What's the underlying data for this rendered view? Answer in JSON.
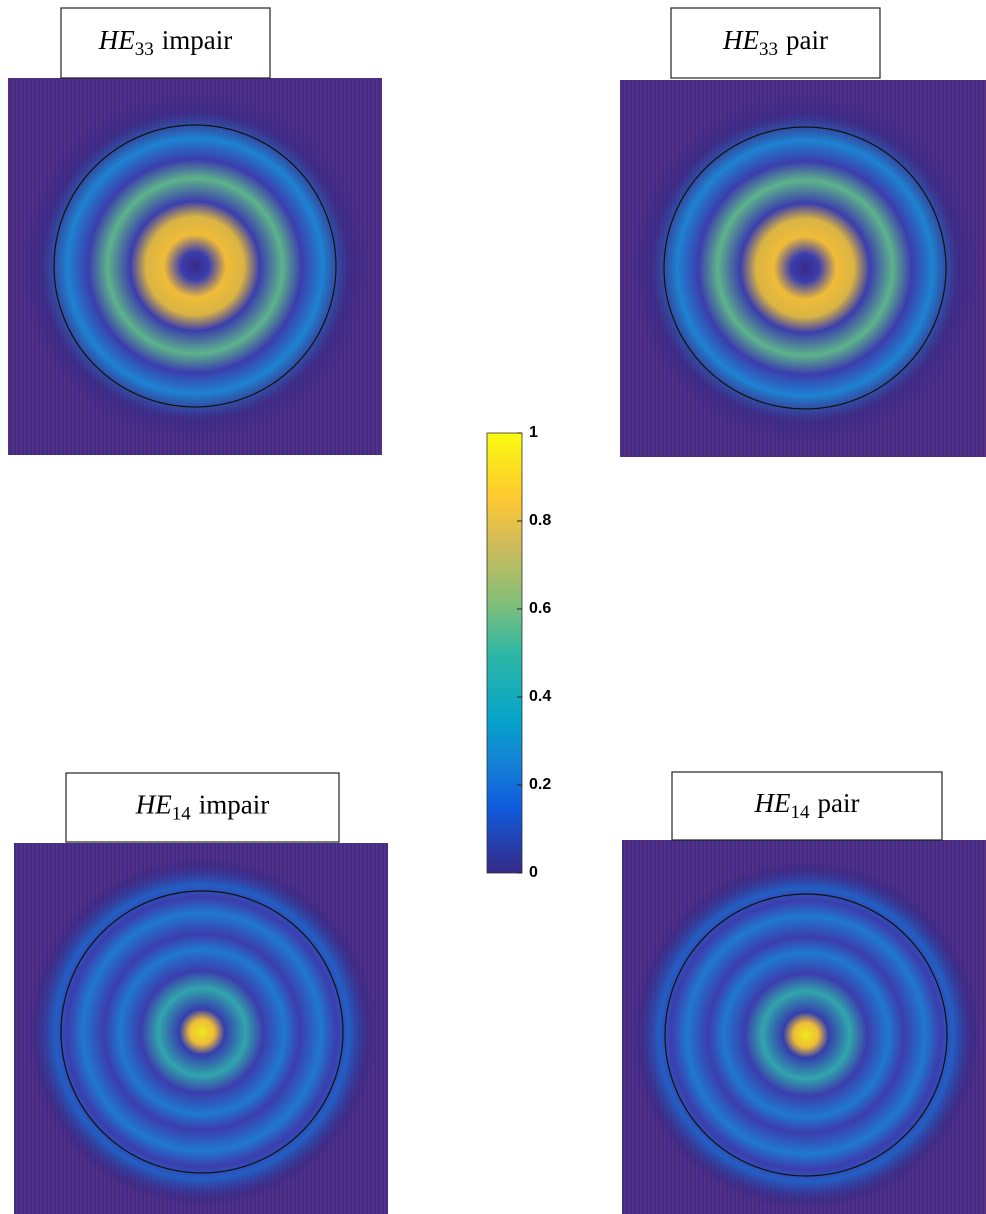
{
  "panels": [
    {
      "mode": "HE",
      "subscript": "33",
      "parity": "impair"
    },
    {
      "mode": "HE",
      "subscript": "33",
      "parity": "pair"
    },
    {
      "mode": "HE",
      "subscript": "14",
      "parity": "impair"
    },
    {
      "mode": "HE",
      "subscript": "14",
      "parity": "pair"
    }
  ],
  "chart_data": {
    "type": "colorbar",
    "ylim": [
      0,
      1
    ],
    "yticks": [
      0,
      0.2,
      0.4,
      0.6,
      0.8,
      1
    ]
  }
}
